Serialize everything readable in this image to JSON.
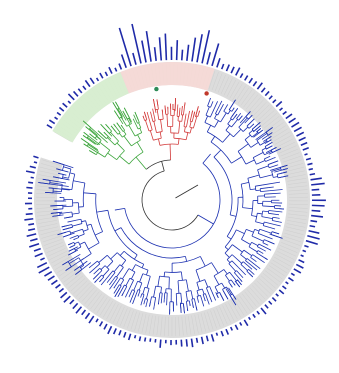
{
  "figure": {
    "title": "",
    "description_text": ""
  },
  "colors": {
    "background": "#ffffff",
    "ring_gray": "#dcdcdc",
    "ring_gray_dark": "#cfcfcf",
    "clade_green_band": "#d7efcf",
    "clade_red_band": "#f7d9d6",
    "branch_blue": "#1a2fb0",
    "branch_green": "#3aa43a",
    "branch_red": "#d23a3a",
    "branch_dark": "#333333",
    "bar_blue": "#1f2aa8",
    "marker_red": "#c0392b",
    "marker_green": "#2e8b57"
  },
  "legend": [],
  "tree": {
    "layout": "circular",
    "clades": [
      {
        "name": "",
        "color_key": "branch_green"
      },
      {
        "name": "",
        "color_key": "branch_red"
      },
      {
        "name": "",
        "color_key": "branch_blue"
      }
    ]
  },
  "chart_data": {
    "type": "bar",
    "title": "",
    "xlabel": "",
    "ylabel": "",
    "layout": "radial-outer-ring",
    "note": "",
    "values": []
  },
  "icons": {
    "clade_marker_red": "circle-red-icon",
    "clade_marker_green": "circle-green-icon"
  }
}
